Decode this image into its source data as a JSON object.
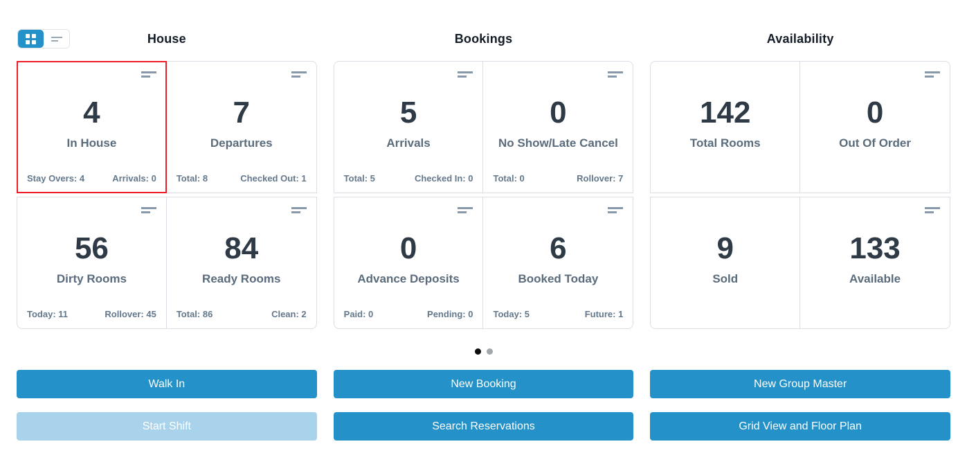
{
  "view_toggle": {
    "grid_icon": "grid-view-icon",
    "list_icon": "list-view-icon",
    "active": "grid"
  },
  "sections": [
    {
      "title": "House",
      "cards": [
        {
          "value": "4",
          "label": "In House",
          "footer_left": "Stay Overs: 4",
          "footer_right": "Arrivals: 0",
          "selected": true
        },
        {
          "value": "7",
          "label": "Departures",
          "footer_left": "Total: 8",
          "footer_right": "Checked Out: 1"
        },
        {
          "value": "56",
          "label": "Dirty Rooms",
          "footer_left": "Today: 11",
          "footer_right": "Rollover: 45"
        },
        {
          "value": "84",
          "label": "Ready Rooms",
          "footer_left": "Total: 86",
          "footer_right": "Clean: 2"
        }
      ]
    },
    {
      "title": "Bookings",
      "cards": [
        {
          "value": "5",
          "label": "Arrivals",
          "footer_left": "Total: 5",
          "footer_right": "Checked In: 0"
        },
        {
          "value": "0",
          "label": "No Show/Late Cancel",
          "footer_left": "Total: 0",
          "footer_right": "Rollover: 7"
        },
        {
          "value": "0",
          "label": "Advance Deposits",
          "footer_left": "Paid: 0",
          "footer_right": "Pending: 0"
        },
        {
          "value": "6",
          "label": "Booked Today",
          "footer_left": "Today: 5",
          "footer_right": "Future: 1"
        }
      ]
    },
    {
      "title": "Availability",
      "cards": [
        {
          "value": "142",
          "label": "Total Rooms"
        },
        {
          "value": "0",
          "label": "Out Of Order"
        },
        {
          "value": "9",
          "label": "Sold"
        },
        {
          "value": "133",
          "label": "Available"
        }
      ]
    }
  ],
  "pagination": {
    "page_count": 2,
    "active_page": 1
  },
  "actions": {
    "walk_in": "Walk In",
    "start_shift": "Start Shift",
    "new_booking": "New Booking",
    "search_reservations": "Search Reservations",
    "new_group_master": "New Group Master",
    "grid_view_floor_plan": "Grid View and Floor Plan"
  },
  "icons": {
    "card_menu": "menu-lines-icon"
  },
  "colors": {
    "accent_blue": "#2492c9",
    "disabled_blue": "#a8d3eb",
    "selected_border_red": "#ee1c25",
    "card_border": "#d9dfe4",
    "value_text": "#2e3a46",
    "label_text": "#5a6b7c",
    "footer_text": "#64788b"
  }
}
